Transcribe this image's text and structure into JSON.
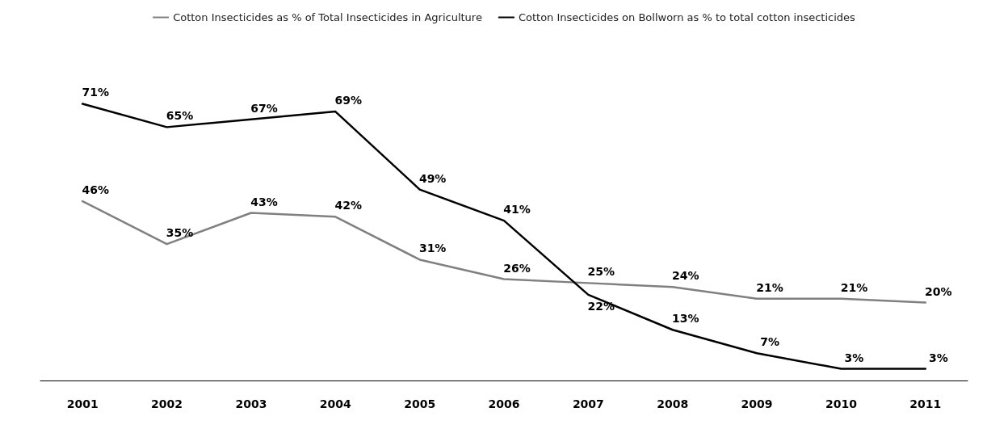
{
  "chart_data": {
    "type": "line",
    "categories": [
      "2001",
      "2002",
      "2003",
      "2004",
      "2005",
      "2006",
      "2007",
      "2008",
      "2009",
      "2010",
      "2011"
    ],
    "series": [
      {
        "name": "Cotton Insecticides as % of Total Insecticides in Agriculture",
        "color": "#808080",
        "values": [
          46,
          35,
          43,
          42,
          31,
          26,
          25,
          24,
          21,
          21,
          20
        ],
        "value_labels": [
          "46%",
          "35%",
          "43%",
          "42%",
          "31%",
          "26%",
          "25%",
          "24%",
          "21%",
          "21%",
          "20%"
        ]
      },
      {
        "name": "Cotton Insecticides on Bollworn as % to total cotton insecticides",
        "color": "#000000",
        "values": [
          71,
          65,
          67,
          69,
          49,
          41,
          22,
          13,
          7,
          3,
          3
        ],
        "value_labels": [
          "71%",
          "65%",
          "67%",
          "69%",
          "49%",
          "41%",
          "22%",
          "13%",
          "7%",
          "3%",
          "3%"
        ]
      }
    ],
    "grid": false,
    "legend": "top",
    "marker": "none",
    "line_style": "solid"
  }
}
